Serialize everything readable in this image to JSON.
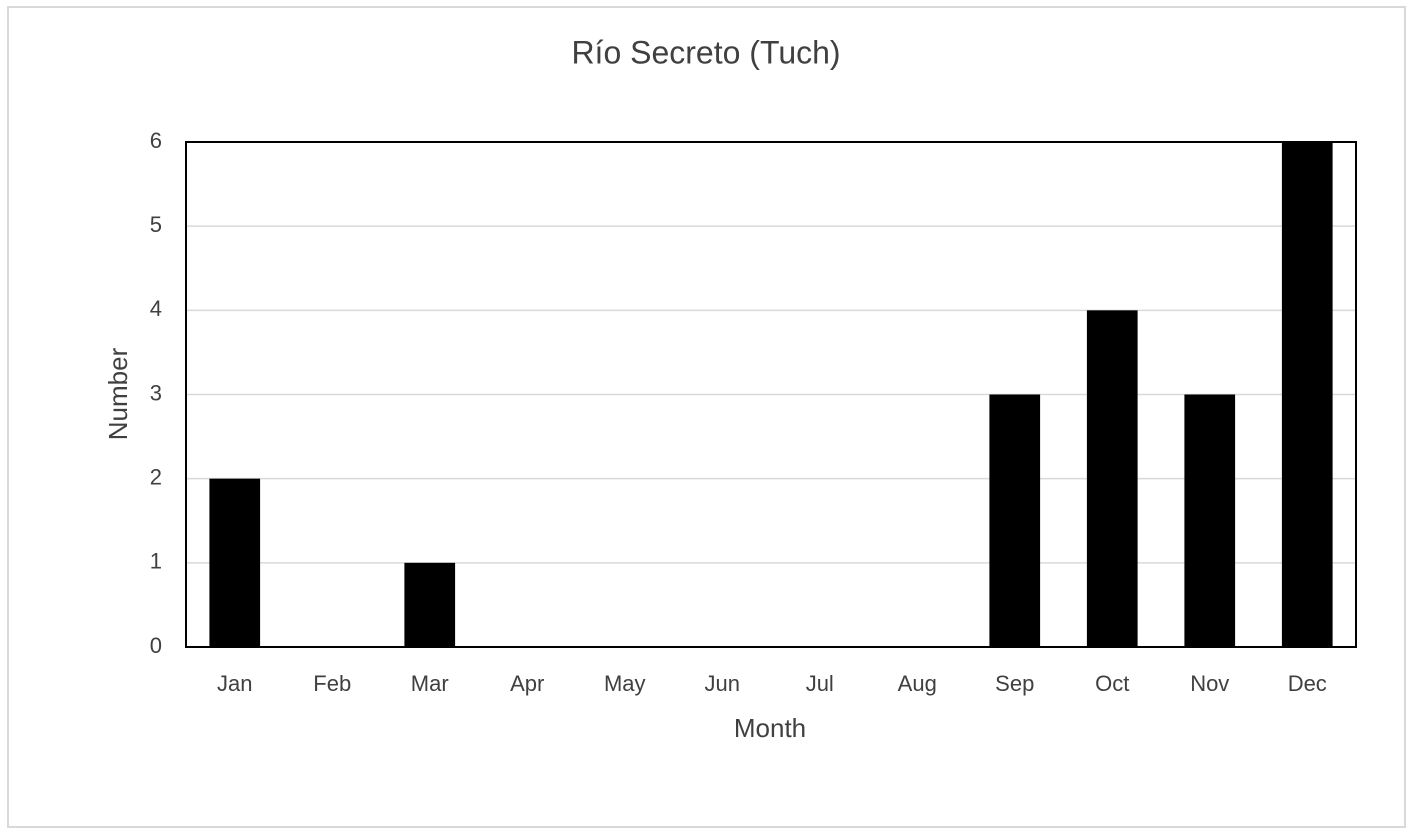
{
  "chart_data": {
    "type": "bar",
    "title": "Río Secreto (Tuch)",
    "x_label": "Month",
    "y_label": "Number",
    "categories": [
      "Jan",
      "Feb",
      "Mar",
      "Apr",
      "May",
      "Jun",
      "Jul",
      "Aug",
      "Sep",
      "Oct",
      "Nov",
      "Dec"
    ],
    "values": [
      2,
      0,
      1,
      0,
      0,
      0,
      0,
      0,
      3,
      4,
      3,
      6
    ],
    "color": "#000000",
    "ylim": [
      0,
      6
    ],
    "yticks": [
      0,
      1,
      2,
      3,
      4,
      5,
      6
    ],
    "grid": true
  }
}
